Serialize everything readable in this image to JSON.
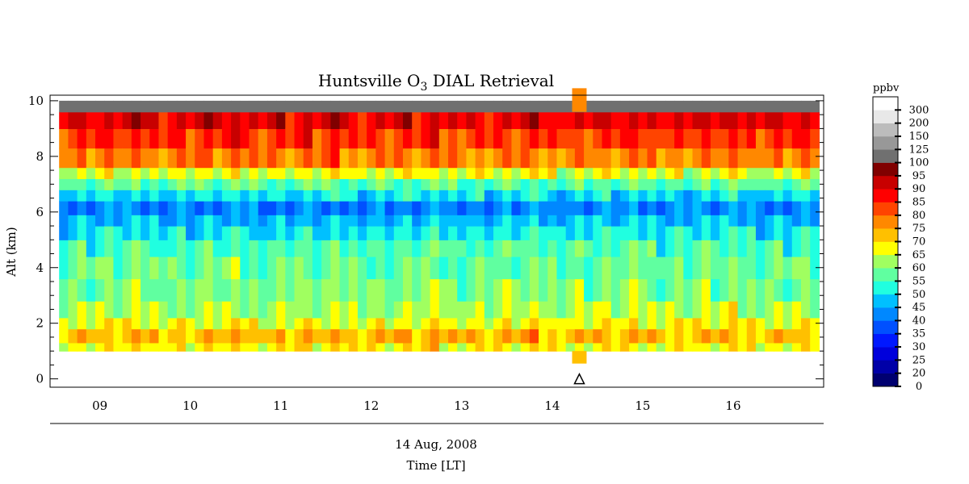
{
  "chart_data": {
    "type": "heatmap",
    "title": "Huntsville O",
    "title_subscript": "3",
    "title_suffix": " DIAL Retrieval",
    "ylabel": "Alt (km)",
    "xlabel": "Time [LT]",
    "date_label": "14 Aug, 2008",
    "colorbar_unit": "ppbv",
    "ylim": [
      -0.3,
      10.2
    ],
    "xlim_hours": [
      8.45,
      17.0
    ],
    "yticks": [
      {
        "value": 0,
        "label": "0"
      },
      {
        "value": 2,
        "label": "2"
      },
      {
        "value": 4,
        "label": "4"
      },
      {
        "value": 6,
        "label": "6"
      },
      {
        "value": 8,
        "label": "8"
      },
      {
        "value": 10,
        "label": "10"
      }
    ],
    "xticks": [
      {
        "value": 9.0,
        "label": "09"
      },
      {
        "value": 10.0,
        "label": "10"
      },
      {
        "value": 11.0,
        "label": "11"
      },
      {
        "value": 12.0,
        "label": "12"
      },
      {
        "value": 13.0,
        "label": "13"
      },
      {
        "value": 14.0,
        "label": "14"
      },
      {
        "value": 15.0,
        "label": "15"
      },
      {
        "value": 16.0,
        "label": "16"
      }
    ],
    "colorbar": [
      {
        "label": "0",
        "color": "#000070"
      },
      {
        "label": "20",
        "color": "#0000a8"
      },
      {
        "label": "25",
        "color": "#0000dc"
      },
      {
        "label": "30",
        "color": "#0018ff"
      },
      {
        "label": "35",
        "color": "#0050ff"
      },
      {
        "label": "40",
        "color": "#0088ff"
      },
      {
        "label": "45",
        "color": "#00c0ff"
      },
      {
        "label": "50",
        "color": "#20ffe0"
      },
      {
        "label": "55",
        "color": "#60ffa0"
      },
      {
        "label": "60",
        "color": "#a0ff60"
      },
      {
        "label": "65",
        "color": "#ffff00"
      },
      {
        "label": "70",
        "color": "#ffc000"
      },
      {
        "label": "75",
        "color": "#ff8800"
      },
      {
        "label": "80",
        "color": "#ff4400"
      },
      {
        "label": "85",
        "color": "#ff0000"
      },
      {
        "label": "90",
        "color": "#c80000"
      },
      {
        "label": "95",
        "color": "#800000"
      },
      {
        "label": "100",
        "color": "#707070"
      },
      {
        "label": "125",
        "color": "#989898"
      },
      {
        "label": "150",
        "color": "#bcbcbc"
      },
      {
        "label": "200",
        "color": "#e8e8e8"
      },
      {
        "label": "300",
        "color": "#ffffff"
      }
    ],
    "layers": [
      {
        "bottom": 1.0,
        "top": 1.3,
        "ppbv": 68
      },
      {
        "bottom": 1.3,
        "top": 1.8,
        "ppbv": 73
      },
      {
        "bottom": 1.8,
        "top": 2.2,
        "ppbv": 67
      },
      {
        "bottom": 2.2,
        "top": 2.8,
        "ppbv": 63
      },
      {
        "bottom": 2.8,
        "top": 3.6,
        "ppbv": 60
      },
      {
        "bottom": 3.6,
        "top": 4.4,
        "ppbv": 58
      },
      {
        "bottom": 4.4,
        "top": 5.0,
        "ppbv": 56
      },
      {
        "bottom": 5.0,
        "top": 5.5,
        "ppbv": 51
      },
      {
        "bottom": 5.5,
        "top": 5.9,
        "ppbv": 47
      },
      {
        "bottom": 5.9,
        "top": 6.4,
        "ppbv": 42
      },
      {
        "bottom": 6.4,
        "top": 6.8,
        "ppbv": 50
      },
      {
        "bottom": 6.8,
        "top": 7.2,
        "ppbv": 57
      },
      {
        "bottom": 7.2,
        "top": 7.6,
        "ppbv": 66
      },
      {
        "bottom": 7.6,
        "top": 8.3,
        "ppbv": 78
      },
      {
        "bottom": 8.3,
        "top": 9.0,
        "ppbv": 84
      },
      {
        "bottom": 9.0,
        "top": 9.6,
        "ppbv": 90
      },
      {
        "bottom": 9.6,
        "top": 10.0,
        "ppbv": 110
      }
    ],
    "special_profile_time": 14.3
  }
}
